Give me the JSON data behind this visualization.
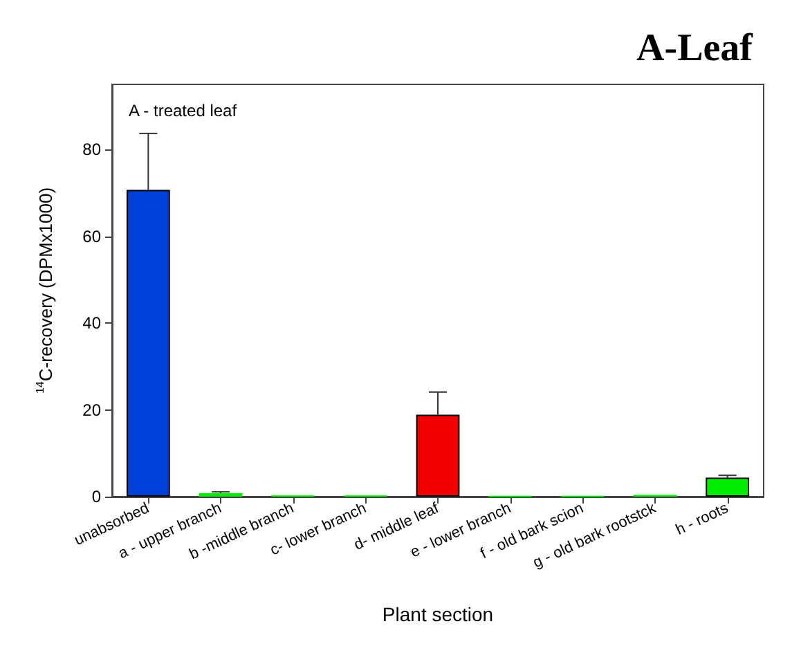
{
  "chart_data": {
    "type": "bar",
    "title": "A-Leaf",
    "xlabel": "Plant section",
    "ylabel": "$^{14}$C-recovery (DPMx1000)",
    "annotations": [
      "A - treated leaf"
    ],
    "categories": [
      "unabsorbed",
      "a - upper branch",
      "b -middle branch",
      "c- lower branch",
      "d- middle leaf",
      "e - lower branch",
      "f - old bark scion",
      "g - old bark rootstck",
      "h - roots"
    ],
    "values": [
      70.7,
      0.8,
      0.2,
      0.2,
      18.9,
      0.1,
      0.1,
      0.4,
      4.4
    ],
    "colors": [
      "#0040d8",
      "#00ee00",
      "#00ee00",
      "#00ee00",
      "#f00000",
      "#00ee00",
      "#00ee00",
      "#00ee00",
      "#00ee00"
    ],
    "errors": [
      [
        70.7,
        83.7
      ],
      [
        0.8,
        1.1
      ],
      null,
      null,
      [
        18.9,
        24.1
      ],
      null,
      null,
      null,
      [
        4.4,
        4.9
      ]
    ],
    "ylim": [
      0,
      95
    ],
    "yticks": [
      0,
      20,
      40,
      60,
      80
    ],
    "grid": false
  }
}
